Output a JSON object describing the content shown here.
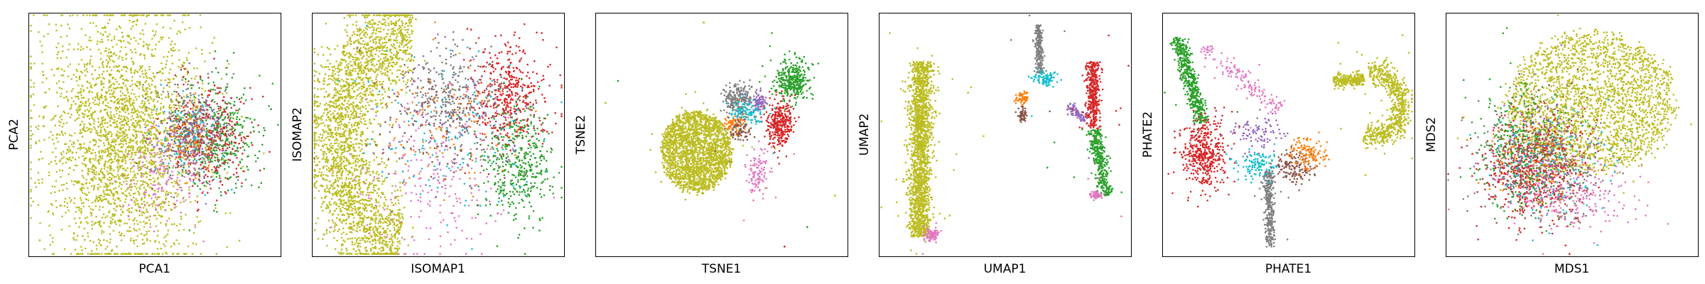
{
  "chart_data": {
    "type": "scatter",
    "description_units": "arbitrary embedding units (no ticks shown); point clouds described by cluster centers and spreads",
    "grid": false,
    "legend": "none",
    "palette": {
      "olive": "#bcbd22",
      "green": "#2ca02c",
      "red": "#d62728",
      "gray": "#7f7f7f",
      "pink": "#e377c2",
      "cyan": "#17becf",
      "orange": "#ff7f0e",
      "brown": "#8c564b",
      "purple": "#9467bd",
      "blue": "#1f77b4"
    },
    "panels": [
      {
        "id": "pca",
        "xlabel": "PCA1",
        "ylabel": "PCA2",
        "xlim": [
          0,
          1
        ],
        "ylim": [
          0,
          1
        ],
        "clusters": [
          {
            "color": "olive",
            "n": 2600,
            "shape": "blob",
            "cx": 0.37,
            "cy": 0.52,
            "sx": 0.15,
            "sy": 0.26
          },
          {
            "color": "green",
            "n": 380,
            "shape": "blob",
            "cx": 0.76,
            "cy": 0.52,
            "sx": 0.08,
            "sy": 0.11
          },
          {
            "color": "red",
            "n": 330,
            "shape": "blob",
            "cx": 0.72,
            "cy": 0.51,
            "sx": 0.08,
            "sy": 0.11
          },
          {
            "color": "gray",
            "n": 260,
            "shape": "blob",
            "cx": 0.65,
            "cy": 0.5,
            "sx": 0.07,
            "sy": 0.1
          },
          {
            "color": "purple",
            "n": 110,
            "shape": "blob",
            "cx": 0.66,
            "cy": 0.52,
            "sx": 0.06,
            "sy": 0.08
          },
          {
            "color": "cyan",
            "n": 100,
            "shape": "blob",
            "cx": 0.62,
            "cy": 0.5,
            "sx": 0.06,
            "sy": 0.09
          },
          {
            "color": "brown",
            "n": 90,
            "shape": "blob",
            "cx": 0.64,
            "cy": 0.49,
            "sx": 0.06,
            "sy": 0.08
          },
          {
            "color": "orange",
            "n": 80,
            "shape": "blob",
            "cx": 0.63,
            "cy": 0.52,
            "sx": 0.06,
            "sy": 0.08
          },
          {
            "color": "pink",
            "n": 140,
            "shape": "blob",
            "cx": 0.53,
            "cy": 0.66,
            "sx": 0.07,
            "sy": 0.1
          }
        ]
      },
      {
        "id": "isomap",
        "xlabel": "ISOMAP1",
        "ylabel": "ISOMAP2",
        "xlim": [
          0,
          1
        ],
        "ylim": [
          0,
          1
        ],
        "clusters": [
          {
            "color": "olive",
            "n": 2600,
            "shape": "arc",
            "cx": 0.4,
            "cy": 0.52,
            "r": 0.3,
            "thick": 0.13,
            "a0": 100,
            "a1": 270,
            "sy": 1.5
          },
          {
            "color": "red",
            "n": 450,
            "shape": "blob",
            "cx": 0.78,
            "cy": 0.34,
            "sx": 0.08,
            "sy": 0.1
          },
          {
            "color": "green",
            "n": 420,
            "shape": "blob",
            "cx": 0.82,
            "cy": 0.62,
            "sx": 0.07,
            "sy": 0.12
          },
          {
            "color": "gray",
            "n": 280,
            "shape": "blob",
            "cx": 0.55,
            "cy": 0.34,
            "sx": 0.09,
            "sy": 0.09
          },
          {
            "color": "pink",
            "n": 220,
            "shape": "blob",
            "cx": 0.48,
            "cy": 0.66,
            "sx": 0.14,
            "sy": 0.16
          },
          {
            "color": "cyan",
            "n": 140,
            "shape": "blob",
            "cx": 0.55,
            "cy": 0.5,
            "sx": 0.16,
            "sy": 0.15
          },
          {
            "color": "orange",
            "n": 120,
            "shape": "blob",
            "cx": 0.52,
            "cy": 0.44,
            "sx": 0.14,
            "sy": 0.14
          },
          {
            "color": "brown",
            "n": 110,
            "shape": "blob",
            "cx": 0.52,
            "cy": 0.48,
            "sx": 0.14,
            "sy": 0.14
          },
          {
            "color": "purple",
            "n": 90,
            "shape": "blob",
            "cx": 0.55,
            "cy": 0.42,
            "sx": 0.14,
            "sy": 0.14
          }
        ]
      },
      {
        "id": "tsne",
        "xlabel": "TSNE1",
        "ylabel": "TSNE2",
        "xlim": [
          0,
          1
        ],
        "ylim": [
          0,
          1
        ],
        "clusters": [
          {
            "color": "olive",
            "n": 2200,
            "shape": "disc",
            "cx": 0.4,
            "cy": 0.57,
            "rx": 0.15,
            "ry": 0.18
          },
          {
            "color": "green",
            "n": 350,
            "shape": "blob",
            "cx": 0.78,
            "cy": 0.28,
            "sx": 0.035,
            "sy": 0.04
          },
          {
            "color": "red",
            "n": 320,
            "shape": "blob",
            "cx": 0.73,
            "cy": 0.46,
            "sx": 0.03,
            "sy": 0.05
          },
          {
            "color": "gray",
            "n": 220,
            "shape": "blob",
            "cx": 0.57,
            "cy": 0.35,
            "sx": 0.03,
            "sy": 0.03
          },
          {
            "color": "purple",
            "n": 80,
            "shape": "blob",
            "cx": 0.65,
            "cy": 0.37,
            "sx": 0.015,
            "sy": 0.02
          },
          {
            "color": "cyan",
            "n": 110,
            "shape": "blob",
            "cx": 0.6,
            "cy": 0.42,
            "sx": 0.04,
            "sy": 0.03
          },
          {
            "color": "orange",
            "n": 70,
            "shape": "blob",
            "cx": 0.55,
            "cy": 0.46,
            "sx": 0.02,
            "sy": 0.02
          },
          {
            "color": "brown",
            "n": 70,
            "shape": "blob",
            "cx": 0.57,
            "cy": 0.49,
            "sx": 0.02,
            "sy": 0.02
          },
          {
            "color": "pink",
            "n": 110,
            "shape": "blob",
            "cx": 0.64,
            "cy": 0.64,
            "sx": 0.02,
            "sy": 0.05
          }
        ],
        "outliers": [
          {
            "color": "olive",
            "x": 0.43,
            "y": 0.04
          },
          {
            "color": "green",
            "x": 0.09,
            "y": 0.28
          },
          {
            "color": "olive",
            "x": 0.04,
            "y": 0.37
          },
          {
            "color": "green",
            "x": 0.84,
            "y": 0.88
          },
          {
            "color": "red",
            "x": 0.75,
            "y": 0.96
          },
          {
            "color": "olive",
            "x": 0.95,
            "y": 0.75
          }
        ]
      },
      {
        "id": "umap",
        "xlabel": "UMAP1",
        "ylabel": "UMAP2",
        "xlim": [
          0,
          1
        ],
        "ylim": [
          0,
          1
        ],
        "clusters": [
          {
            "color": "olive",
            "n": 1900,
            "shape": "band",
            "x0": 0.17,
            "y0": 0.2,
            "x1": 0.16,
            "y1": 0.92,
            "w": 0.045
          },
          {
            "color": "pink",
            "n": 80,
            "shape": "blob",
            "cx": 0.21,
            "cy": 0.91,
            "sx": 0.015,
            "sy": 0.015
          },
          {
            "color": "gray",
            "n": 230,
            "shape": "band",
            "x0": 0.63,
            "y0": 0.05,
            "x1": 0.64,
            "y1": 0.25,
            "w": 0.015
          },
          {
            "color": "cyan",
            "n": 90,
            "shape": "blob",
            "cx": 0.66,
            "cy": 0.27,
            "sx": 0.025,
            "sy": 0.015
          },
          {
            "color": "orange",
            "n": 60,
            "shape": "blob",
            "cx": 0.57,
            "cy": 0.35,
            "sx": 0.012,
            "sy": 0.012
          },
          {
            "color": "brown",
            "n": 60,
            "shape": "blob",
            "cx": 0.57,
            "cy": 0.42,
            "sx": 0.01,
            "sy": 0.015
          },
          {
            "color": "purple",
            "n": 90,
            "shape": "band",
            "x0": 0.75,
            "y0": 0.38,
            "x1": 0.82,
            "y1": 0.44,
            "w": 0.02
          },
          {
            "color": "red",
            "n": 380,
            "shape": "band",
            "x0": 0.85,
            "y0": 0.2,
            "x1": 0.85,
            "y1": 0.48,
            "w": 0.03
          },
          {
            "color": "green",
            "n": 380,
            "shape": "band",
            "x0": 0.86,
            "y0": 0.48,
            "x1": 0.9,
            "y1": 0.75,
            "w": 0.03
          },
          {
            "color": "pink",
            "n": 50,
            "shape": "blob",
            "cx": 0.86,
            "cy": 0.75,
            "sx": 0.015,
            "sy": 0.01
          }
        ]
      },
      {
        "id": "phate",
        "xlabel": "PHATE1",
        "ylabel": "PHATE2",
        "xlim": [
          0,
          1
        ],
        "ylim": [
          0,
          1
        ],
        "clusters": [
          {
            "color": "olive",
            "n": 700,
            "shape": "arc",
            "cx": 0.84,
            "cy": 0.38,
            "r": 0.11,
            "thick": 0.04,
            "a0": -100,
            "a1": 110,
            "sy": 1.2
          },
          {
            "color": "olive",
            "n": 250,
            "shape": "band",
            "x0": 0.68,
            "y0": 0.28,
            "x1": 0.8,
            "y1": 0.27,
            "w": 0.025
          },
          {
            "color": "green",
            "n": 520,
            "shape": "band",
            "x0": 0.06,
            "y0": 0.1,
            "x1": 0.16,
            "y1": 0.45,
            "w": 0.03
          },
          {
            "color": "red",
            "n": 450,
            "shape": "blob",
            "cx": 0.17,
            "cy": 0.58,
            "sx": 0.045,
            "sy": 0.07
          },
          {
            "color": "gray",
            "n": 300,
            "shape": "band",
            "x0": 0.42,
            "y0": 0.65,
            "x1": 0.43,
            "y1": 0.96,
            "w": 0.02
          },
          {
            "color": "pink",
            "n": 150,
            "shape": "band",
            "x0": 0.15,
            "y0": 0.14,
            "x1": 0.47,
            "y1": 0.4,
            "w": 0.04
          },
          {
            "color": "brown",
            "n": 150,
            "shape": "blob",
            "cx": 0.52,
            "cy": 0.64,
            "sx": 0.04,
            "sy": 0.03
          },
          {
            "color": "orange",
            "n": 120,
            "shape": "blob",
            "cx": 0.58,
            "cy": 0.58,
            "sx": 0.04,
            "sy": 0.03
          },
          {
            "color": "cyan",
            "n": 120,
            "shape": "blob",
            "cx": 0.38,
            "cy": 0.62,
            "sx": 0.05,
            "sy": 0.03
          },
          {
            "color": "purple",
            "n": 90,
            "shape": "blob",
            "cx": 0.38,
            "cy": 0.5,
            "sx": 0.05,
            "sy": 0.04
          }
        ]
      },
      {
        "id": "mds",
        "xlabel": "MDS1",
        "ylabel": "MDS2",
        "xlim": [
          0,
          1
        ],
        "ylim": [
          0,
          1
        ],
        "clusters": [
          {
            "color": "olive",
            "n": 2300,
            "shape": "disc",
            "cx": 0.58,
            "cy": 0.37,
            "rx": 0.36,
            "ry": 0.31
          },
          {
            "color": "red",
            "n": 650,
            "shape": "blob",
            "cx": 0.35,
            "cy": 0.65,
            "sx": 0.1,
            "sy": 0.11
          },
          {
            "color": "green",
            "n": 380,
            "shape": "blob",
            "cx": 0.3,
            "cy": 0.55,
            "sx": 0.09,
            "sy": 0.13
          },
          {
            "color": "gray",
            "n": 260,
            "shape": "blob",
            "cx": 0.4,
            "cy": 0.63,
            "sx": 0.12,
            "sy": 0.11
          },
          {
            "color": "pink",
            "n": 200,
            "shape": "blob",
            "cx": 0.52,
            "cy": 0.76,
            "sx": 0.13,
            "sy": 0.07
          },
          {
            "color": "cyan",
            "n": 150,
            "shape": "blob",
            "cx": 0.4,
            "cy": 0.62,
            "sx": 0.12,
            "sy": 0.11
          },
          {
            "color": "brown",
            "n": 130,
            "shape": "blob",
            "cx": 0.36,
            "cy": 0.57,
            "sx": 0.11,
            "sy": 0.12
          },
          {
            "color": "orange",
            "n": 120,
            "shape": "blob",
            "cx": 0.35,
            "cy": 0.6,
            "sx": 0.11,
            "sy": 0.11
          },
          {
            "color": "purple",
            "n": 100,
            "shape": "blob",
            "cx": 0.4,
            "cy": 0.58,
            "sx": 0.12,
            "sy": 0.12
          }
        ]
      }
    ]
  }
}
